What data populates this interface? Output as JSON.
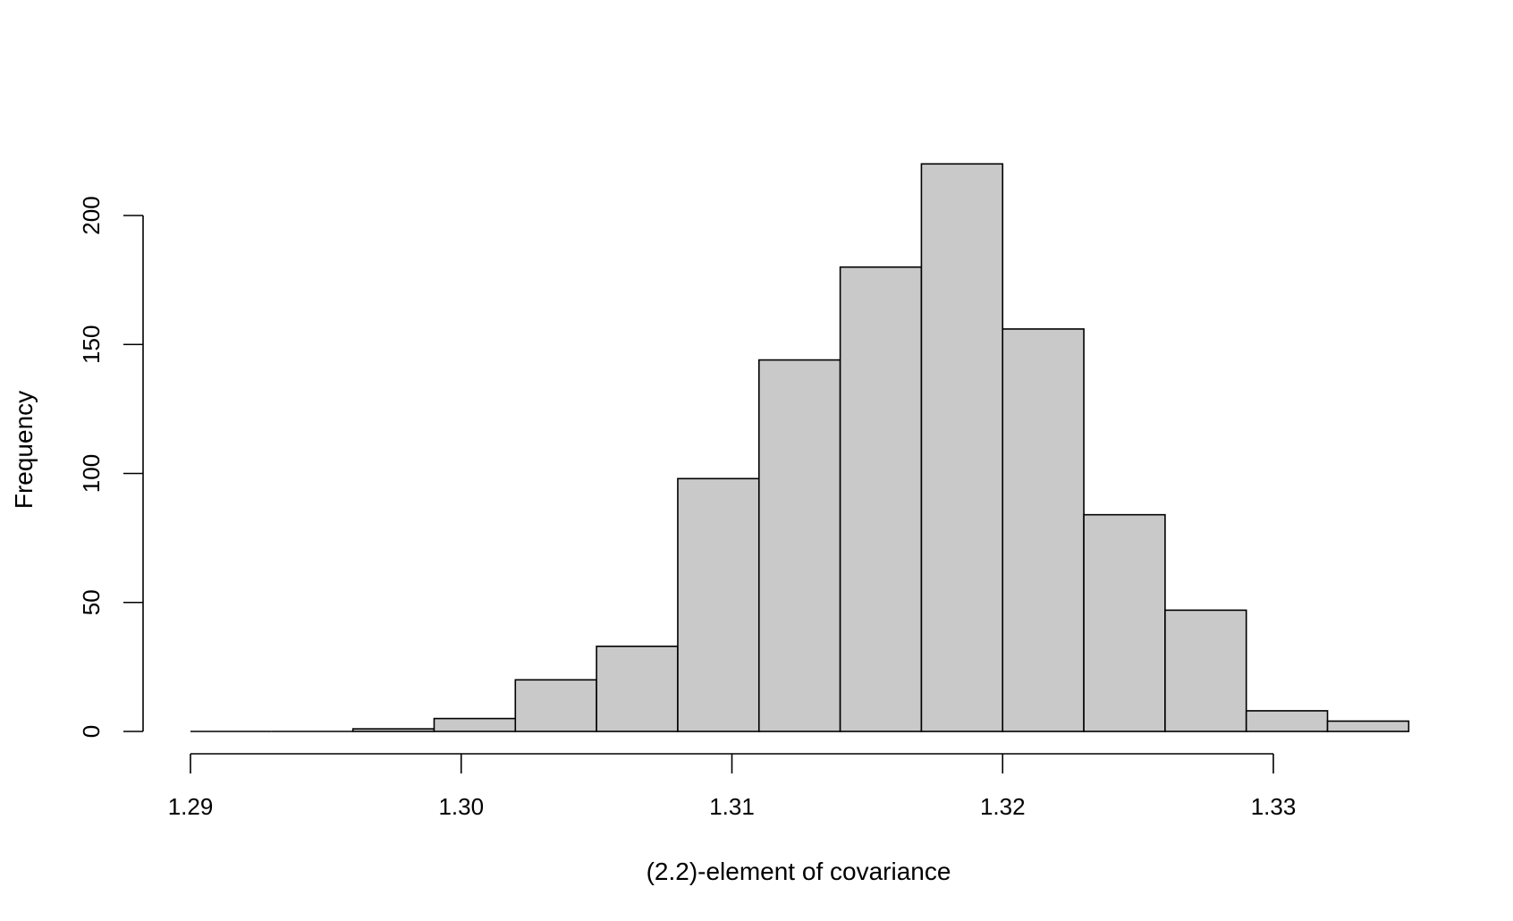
{
  "chart_data": {
    "type": "bar",
    "subtype": "histogram",
    "title": "",
    "xlabel": "(2.2)-element of covariance",
    "ylabel": "Frequency",
    "bin_width": 0.003,
    "bins": [
      {
        "start": 1.29,
        "end": 1.293,
        "count": 0
      },
      {
        "start": 1.293,
        "end": 1.296,
        "count": 0
      },
      {
        "start": 1.296,
        "end": 1.299,
        "count": 1
      },
      {
        "start": 1.299,
        "end": 1.302,
        "count": 5
      },
      {
        "start": 1.302,
        "end": 1.305,
        "count": 20
      },
      {
        "start": 1.305,
        "end": 1.308,
        "count": 33
      },
      {
        "start": 1.308,
        "end": 1.311,
        "count": 98
      },
      {
        "start": 1.311,
        "end": 1.314,
        "count": 144
      },
      {
        "start": 1.314,
        "end": 1.317,
        "count": 180
      },
      {
        "start": 1.317,
        "end": 1.32,
        "count": 220
      },
      {
        "start": 1.32,
        "end": 1.323,
        "count": 156
      },
      {
        "start": 1.323,
        "end": 1.326,
        "count": 84
      },
      {
        "start": 1.326,
        "end": 1.329,
        "count": 47
      },
      {
        "start": 1.329,
        "end": 1.332,
        "count": 8
      },
      {
        "start": 1.332,
        "end": 1.335,
        "count": 4
      }
    ],
    "xlim": [
      1.29,
      1.335
    ],
    "ylim": [
      0,
      220
    ],
    "x_ticks": [
      1.29,
      1.3,
      1.31,
      1.32,
      1.33
    ],
    "x_tick_labels": [
      "1.29",
      "1.30",
      "1.31",
      "1.32",
      "1.33"
    ],
    "y_ticks": [
      0,
      50,
      100,
      150,
      200
    ],
    "y_tick_labels": [
      "0",
      "50",
      "100",
      "150",
      "200"
    ],
    "grid": false,
    "legend": "none",
    "colors": {
      "bar_fill": "#c9c9c9",
      "bar_stroke": "#000000",
      "axis": "#000000"
    }
  }
}
